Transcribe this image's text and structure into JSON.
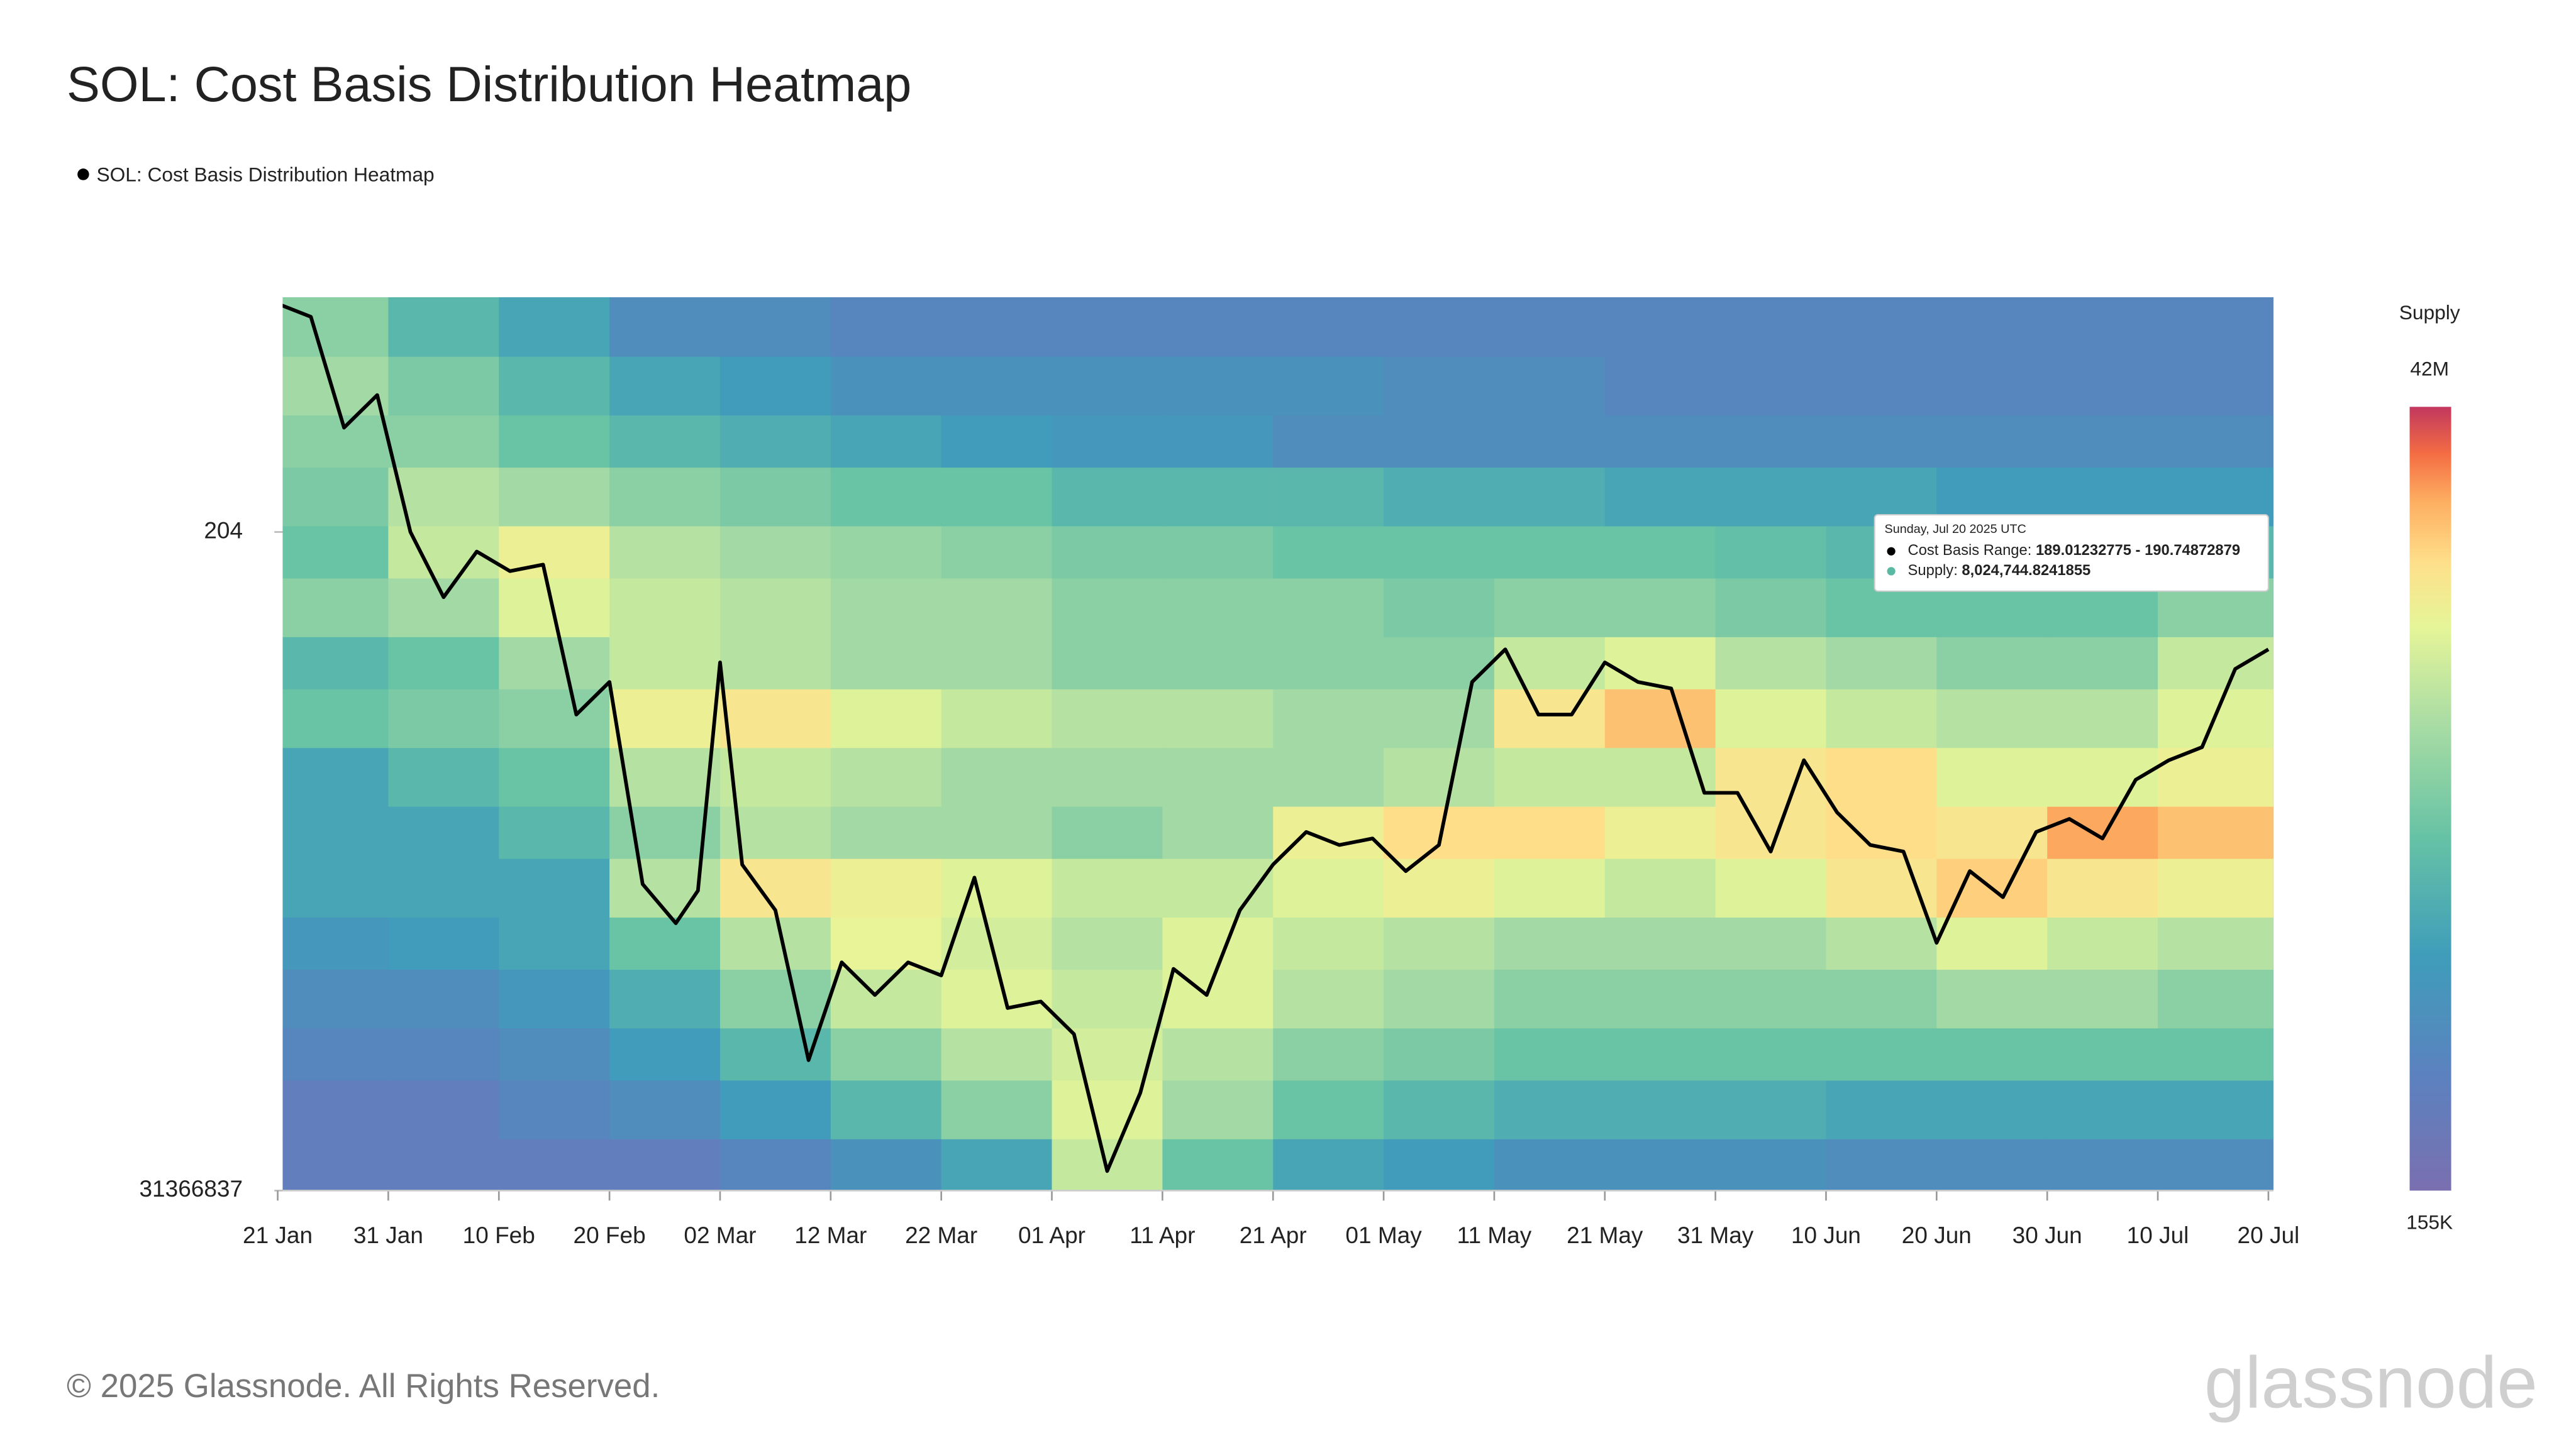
{
  "chart_data": {
    "type": "heatmap",
    "title": "SOL: Cost Basis Distribution Heatmap",
    "xlim": [
      "21 Jan",
      "20 Jul"
    ],
    "xticks": [
      "21 Jan",
      "31 Jan",
      "10 Feb",
      "20 Feb",
      "02 Mar",
      "12 Mar",
      "22 Mar",
      "01 Apr",
      "11 Apr",
      "21 Apr",
      "01 May",
      "11 May",
      "21 May",
      "31 May",
      "10 Jun",
      "20 Jun",
      "30 Jun",
      "10 Jul",
      "20 Jul"
    ],
    "ylim": [
      103,
      240
    ],
    "yticks": [
      {
        "value": 103,
        "label": "31366837"
      },
      204
    ],
    "x": [
      "21 Jan",
      "24 Jan",
      "27 Jan",
      "30 Jan",
      "02 Feb",
      "05 Feb",
      "08 Feb",
      "11 Feb",
      "14 Feb",
      "17 Feb",
      "20 Feb",
      "23 Feb",
      "26 Feb",
      "28 Feb",
      "02 Mar",
      "04 Mar",
      "07 Mar",
      "10 Mar",
      "13 Mar",
      "16 Mar",
      "19 Mar",
      "22 Mar",
      "25 Mar",
      "28 Mar",
      "31 Mar",
      "03 Apr",
      "06 Apr",
      "09 Apr",
      "12 Apr",
      "15 Apr",
      "18 Apr",
      "21 Apr",
      "24 Apr",
      "27 Apr",
      "30 Apr",
      "03 May",
      "06 May",
      "09 May",
      "12 May",
      "15 May",
      "18 May",
      "21 May",
      "24 May",
      "27 May",
      "30 May",
      "02 Jun",
      "05 Jun",
      "08 Jun",
      "11 Jun",
      "14 Jun",
      "17 Jun",
      "20 Jun",
      "23 Jun",
      "26 Jun",
      "29 Jun",
      "02 Jul",
      "05 Jul",
      "08 Jul",
      "11 Jul",
      "14 Jul",
      "17 Jul",
      "20 Jul"
    ],
    "series": [
      {
        "name": "SOL: Cost Basis Distribution Heatmap",
        "color": "#000000",
        "values": [
          239,
          237,
          220,
          225,
          204,
          194,
          201,
          198,
          199,
          176,
          181,
          150,
          144,
          149,
          184,
          153,
          146,
          123,
          138,
          133,
          138,
          136,
          151,
          131,
          132,
          127,
          106,
          118,
          137,
          133,
          146,
          153,
          158,
          156,
          157,
          152,
          156,
          181,
          186,
          176,
          176,
          184,
          181,
          180,
          164,
          164,
          155,
          169,
          161,
          156,
          155,
          141,
          152,
          148,
          158,
          160,
          157,
          166,
          169,
          171,
          183,
          186
        ]
      }
    ],
    "heatmap": {
      "title": "Supply",
      "scale": "log",
      "zlim": [
        0.155,
        42
      ],
      "zticks": [
        {
          "value": 0.155,
          "label": "155K"
        },
        {
          "value": 42,
          "label": "42M"
        }
      ],
      "y_bins": [
        103,
        111,
        120,
        128,
        137,
        145,
        154,
        162,
        171,
        180,
        188,
        197,
        205,
        214,
        222,
        231,
        240
      ],
      "z": [
        [
          0.3,
          0.3,
          0.3,
          0.3,
          0.4,
          0.6,
          1,
          6,
          2,
          1,
          0.8,
          0.6,
          0.6,
          0.6,
          0.5,
          0.5,
          0.5,
          0.5
        ],
        [
          0.3,
          0.3,
          0.4,
          0.5,
          0.8,
          1.5,
          3,
          8,
          4,
          2,
          1.5,
          1.2,
          1.2,
          1.2,
          1,
          1,
          1,
          1
        ],
        [
          0.4,
          0.4,
          0.5,
          0.8,
          1.5,
          3,
          5,
          7,
          5,
          3,
          2.5,
          2,
          2,
          2,
          2,
          2,
          2,
          2
        ],
        [
          0.5,
          0.5,
          0.7,
          1.2,
          3,
          6,
          8,
          6,
          8,
          5,
          4,
          3,
          3,
          3,
          3,
          4,
          4,
          3
        ],
        [
          0.7,
          0.8,
          1,
          2,
          5,
          9,
          7,
          5,
          8,
          6,
          5,
          4,
          4,
          4,
          5,
          8,
          6,
          5
        ],
        [
          1,
          1,
          1,
          5,
          12,
          10,
          8,
          6,
          6,
          8,
          10,
          8,
          6,
          8,
          12,
          16,
          12,
          10
        ],
        [
          1,
          1,
          1.5,
          3,
          5,
          4,
          4,
          3,
          4,
          10,
          14,
          14,
          10,
          12,
          14,
          12,
          22,
          18
        ],
        [
          1,
          1.5,
          2,
          5,
          6,
          5,
          4,
          4,
          4,
          4,
          5,
          6,
          6,
          12,
          14,
          8,
          8,
          10
        ],
        [
          2,
          2.5,
          3,
          10,
          12,
          8,
          6,
          5,
          5,
          4,
          4,
          12,
          18,
          8,
          6,
          5,
          5,
          8
        ],
        [
          1.5,
          2,
          4,
          6,
          5,
          4,
          4,
          3,
          3,
          3,
          3,
          6,
          8,
          5,
          4,
          3,
          3,
          6
        ],
        [
          3,
          4,
          8,
          6,
          5,
          4,
          4,
          3,
          3,
          3,
          2.5,
          3,
          3,
          2.5,
          2,
          2,
          2,
          3
        ],
        [
          2,
          6,
          10,
          5,
          4,
          3.5,
          3,
          2.5,
          2.5,
          2,
          2,
          2,
          2,
          1.8,
          1.5,
          1.5,
          1.5,
          1.5
        ],
        [
          2.5,
          5,
          4,
          3,
          2.5,
          2,
          2,
          1.5,
          1.5,
          1.5,
          1.2,
          1.2,
          1,
          1,
          1,
          0.8,
          0.8,
          0.8
        ],
        [
          3,
          3,
          2,
          1.5,
          1.2,
          1,
          0.8,
          0.7,
          0.7,
          0.5,
          0.5,
          0.5,
          0.5,
          0.5,
          0.5,
          0.5,
          0.5,
          0.5
        ],
        [
          4,
          2.5,
          1.5,
          1,
          0.8,
          0.6,
          0.6,
          0.6,
          0.6,
          0.6,
          0.5,
          0.5,
          0.4,
          0.4,
          0.4,
          0.4,
          0.4,
          0.4
        ],
        [
          3,
          1.5,
          1,
          0.5,
          0.5,
          0.4,
          0.4,
          0.4,
          0.4,
          0.4,
          0.4,
          0.4,
          0.4,
          0.4,
          0.4,
          0.4,
          0.4,
          0.4
        ]
      ]
    },
    "tooltip": {
      "date": "Sunday, Jul 20 2025 UTC",
      "range_label": "Cost Basis Range:",
      "range": "189.01232775 - 190.74872879",
      "supply_label": "Supply:",
      "supply": "8,024,744.8241855"
    },
    "footer": "© 2025 Glassnode. All Rights Reserved.",
    "logo": "glassnode"
  }
}
